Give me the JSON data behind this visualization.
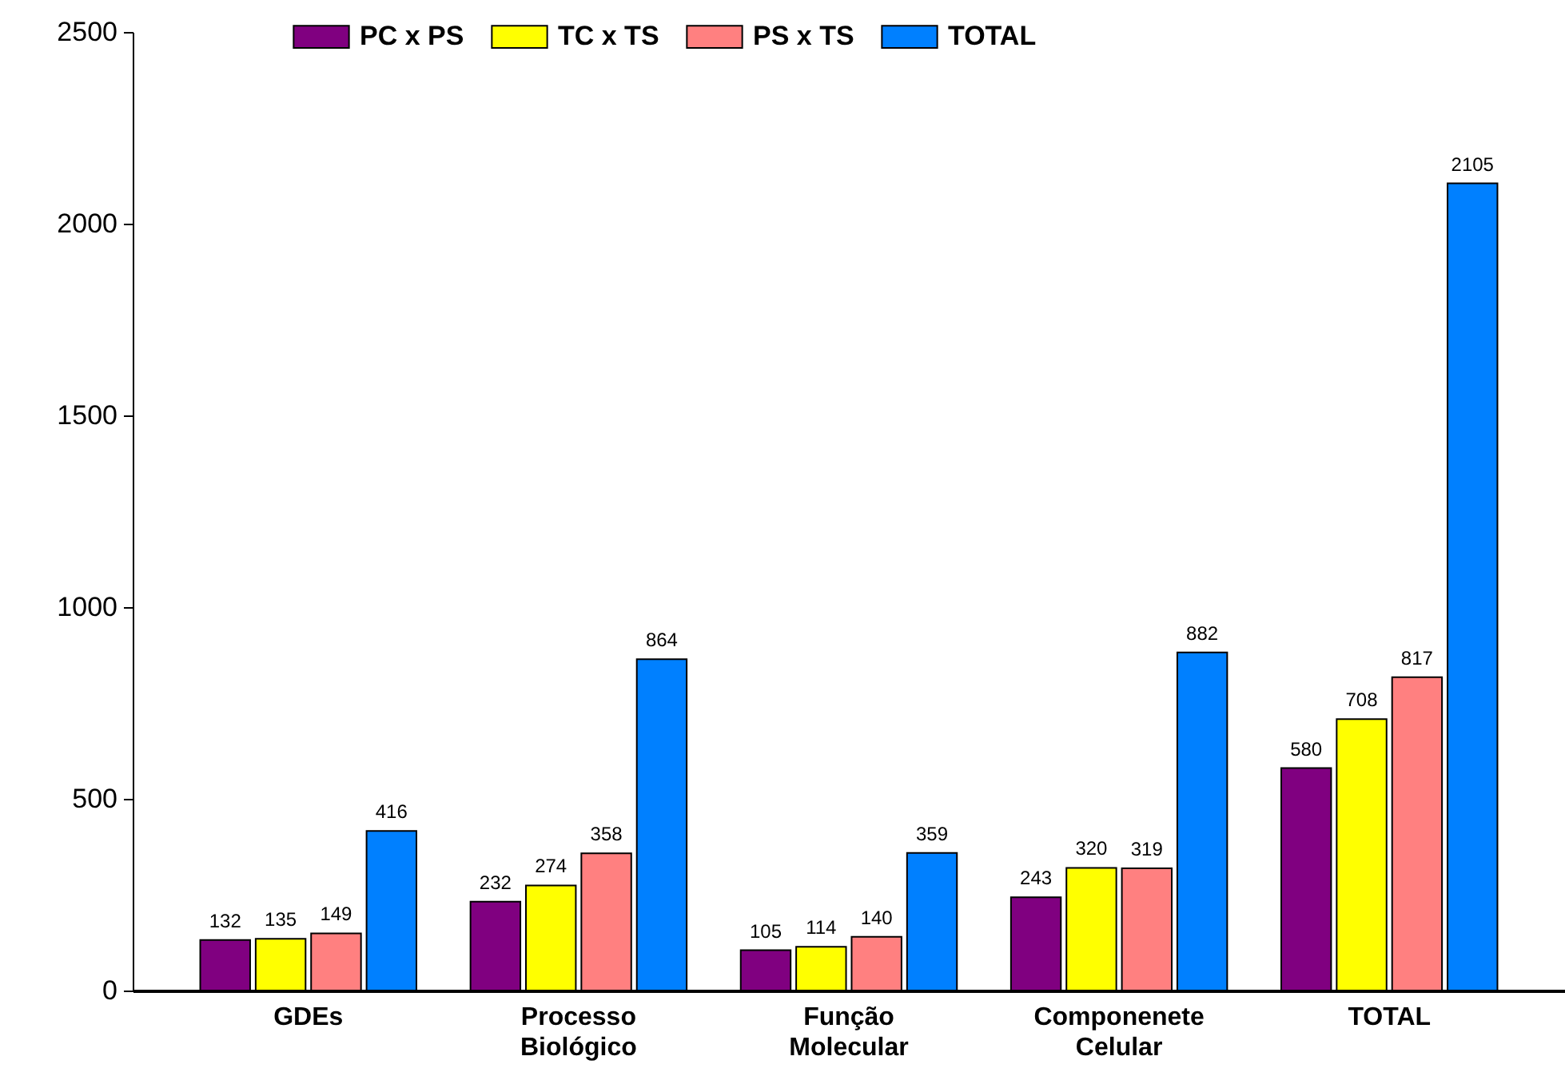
{
  "chart_data": {
    "type": "bar",
    "categories": [
      "GDEs",
      "Processo Biológico",
      "Função Molecular",
      "Componenete Celular",
      "TOTAL"
    ],
    "series": [
      {
        "name": "PC x PS",
        "color": "#800080",
        "values": [
          132,
          232,
          105,
          243,
          580
        ]
      },
      {
        "name": "TC x TS",
        "color": "#ffff00",
        "values": [
          135,
          274,
          114,
          320,
          708
        ]
      },
      {
        "name": "PS x TS",
        "color": "#ff8080",
        "values": [
          149,
          358,
          140,
          319,
          817
        ]
      },
      {
        "name": "TOTAL",
        "color": "#0080ff",
        "values": [
          416,
          864,
          359,
          882,
          2105
        ]
      }
    ],
    "ylim": [
      0,
      2500
    ],
    "yticks": [
      0,
      500,
      1000,
      1500,
      2000,
      2500
    ],
    "data_labels": true,
    "legend": "top",
    "grid": false
  }
}
